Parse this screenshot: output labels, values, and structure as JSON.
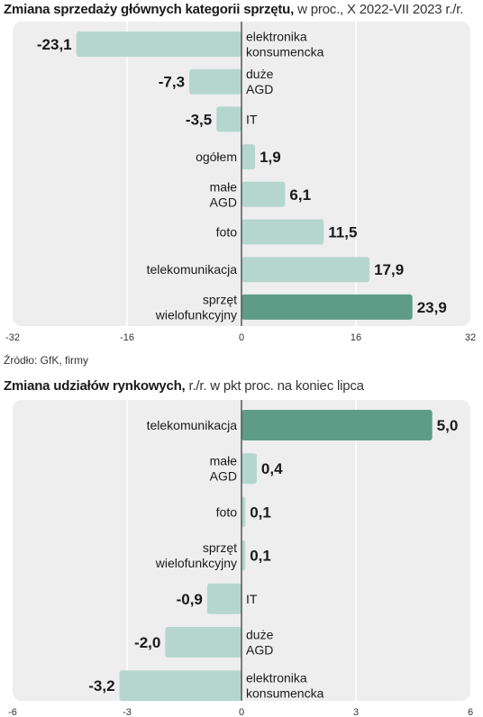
{
  "chart_data": [
    {
      "type": "bar",
      "orientation": "horizontal",
      "title": "Zmiana sprzedaży głównych kategorii sprzętu,",
      "subtitle": "w proc., X 2022-VII 2023 r./r.",
      "categories": [
        "elektronika\nkonsumencka",
        "duże\nAGD",
        "IT",
        "ogółem",
        "małe\nAGD",
        "foto",
        "telekomunikacja",
        "sprzęt\nwielofunkcyjny"
      ],
      "values": [
        -23.1,
        -7.3,
        -3.5,
        1.9,
        6.1,
        11.5,
        17.9,
        23.9
      ],
      "value_labels": [
        "-23,1",
        "-7,3",
        "-3,5",
        "1,9",
        "6,1",
        "11,5",
        "17,9",
        "23,9"
      ],
      "highlight_index": 7,
      "xlim": [
        -32,
        32
      ],
      "xticks": [
        -32,
        -16,
        0,
        16,
        32
      ],
      "xtick_labels": [
        "-32",
        "-16",
        "0",
        "16",
        "32"
      ],
      "grid": true
    },
    {
      "type": "bar",
      "orientation": "horizontal",
      "title": "Zmiana udziałów rynkowych,",
      "subtitle": "r./r. w pkt proc. na koniec lipca",
      "categories": [
        "telekomunikacja",
        "małe\nAGD",
        "foto",
        "sprzęt\nwielofunkcyjny",
        "IT",
        "duże\nAGD",
        "elektronika\nkonsumencka"
      ],
      "values": [
        5.0,
        0.4,
        0.1,
        0.1,
        -0.9,
        -2.0,
        -3.2
      ],
      "value_labels": [
        "5,0",
        "0,4",
        "0,1",
        "0,1",
        "-0,9",
        "-2,0",
        "-3,2"
      ],
      "highlight_index": 0,
      "xlim": [
        -6,
        6
      ],
      "xticks": [
        -6,
        -3,
        0,
        3,
        6
      ],
      "xtick_labels": [
        "-6",
        "-3",
        "0",
        "3",
        "6"
      ],
      "grid": true
    }
  ],
  "source": "Źródło: GfK, firmy",
  "colors": {
    "bar": "#b5d6ce",
    "bar_highlight": "#5e9c87",
    "panel_bg": "#eeeeee",
    "axis": "#555555",
    "grid": "#ffffff"
  }
}
